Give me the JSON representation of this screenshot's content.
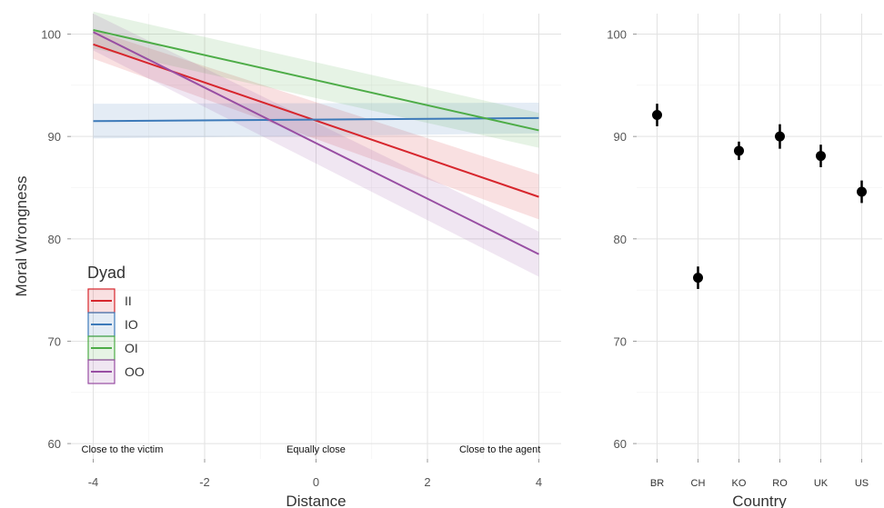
{
  "chart_data": [
    {
      "type": "line",
      "xlabel": "Distance",
      "ylabel": "Moral Wrongness",
      "xlim": [
        -4.4,
        4.4
      ],
      "ylim": [
        58.5,
        102
      ],
      "x_ticks": [
        -4,
        -2,
        0,
        2,
        4
      ],
      "y_ticks": [
        60,
        70,
        80,
        90,
        100
      ],
      "grid": true,
      "annotations": [
        {
          "text": "Close to the victim",
          "x": -4
        },
        {
          "text": "Equally close",
          "x": 0
        },
        {
          "text": "Close to the agent",
          "x": 3.3
        }
      ],
      "legend": {
        "title": "Dyad",
        "placement": "bottom-left"
      },
      "series": [
        {
          "name": "II",
          "color": "#d7262d",
          "x": [
            -4,
            4
          ],
          "y": [
            99.0,
            84.1
          ],
          "ci_low": [
            97.6,
            81.9
          ],
          "ci_high": [
            100.4,
            86.3
          ]
        },
        {
          "name": "IO",
          "color": "#3d7ab9",
          "x": [
            -4,
            4
          ],
          "y": [
            91.5,
            91.8
          ],
          "ci_low": [
            89.8,
            90.3
          ],
          "ci_high": [
            93.2,
            93.3
          ]
        },
        {
          "name": "OI",
          "color": "#4dac47",
          "x": [
            -4,
            4
          ],
          "y": [
            100.4,
            90.6
          ],
          "ci_low": [
            98.6,
            88.9
          ],
          "ci_high": [
            102.2,
            92.3
          ]
        },
        {
          "name": "OO",
          "color": "#984ea3",
          "x": [
            -4,
            4
          ],
          "y": [
            100.2,
            78.5
          ],
          "ci_low": [
            98.4,
            76.3
          ],
          "ci_high": [
            102.0,
            80.7
          ]
        }
      ]
    },
    {
      "type": "scatter",
      "xlabel": "Country",
      "ylabel": "",
      "ylim": [
        58.5,
        102
      ],
      "y_ticks": [
        60,
        70,
        80,
        90,
        100
      ],
      "grid": true,
      "categories": [
        "BR",
        "CH",
        "KO",
        "RO",
        "UK",
        "US"
      ],
      "values": [
        92.1,
        76.2,
        88.6,
        90.0,
        88.1,
        84.6
      ],
      "err_low": [
        91.0,
        75.1,
        87.7,
        88.8,
        87.0,
        83.5
      ],
      "err_high": [
        93.2,
        77.3,
        89.5,
        91.2,
        89.2,
        85.7
      ],
      "color": "#000000"
    }
  ]
}
